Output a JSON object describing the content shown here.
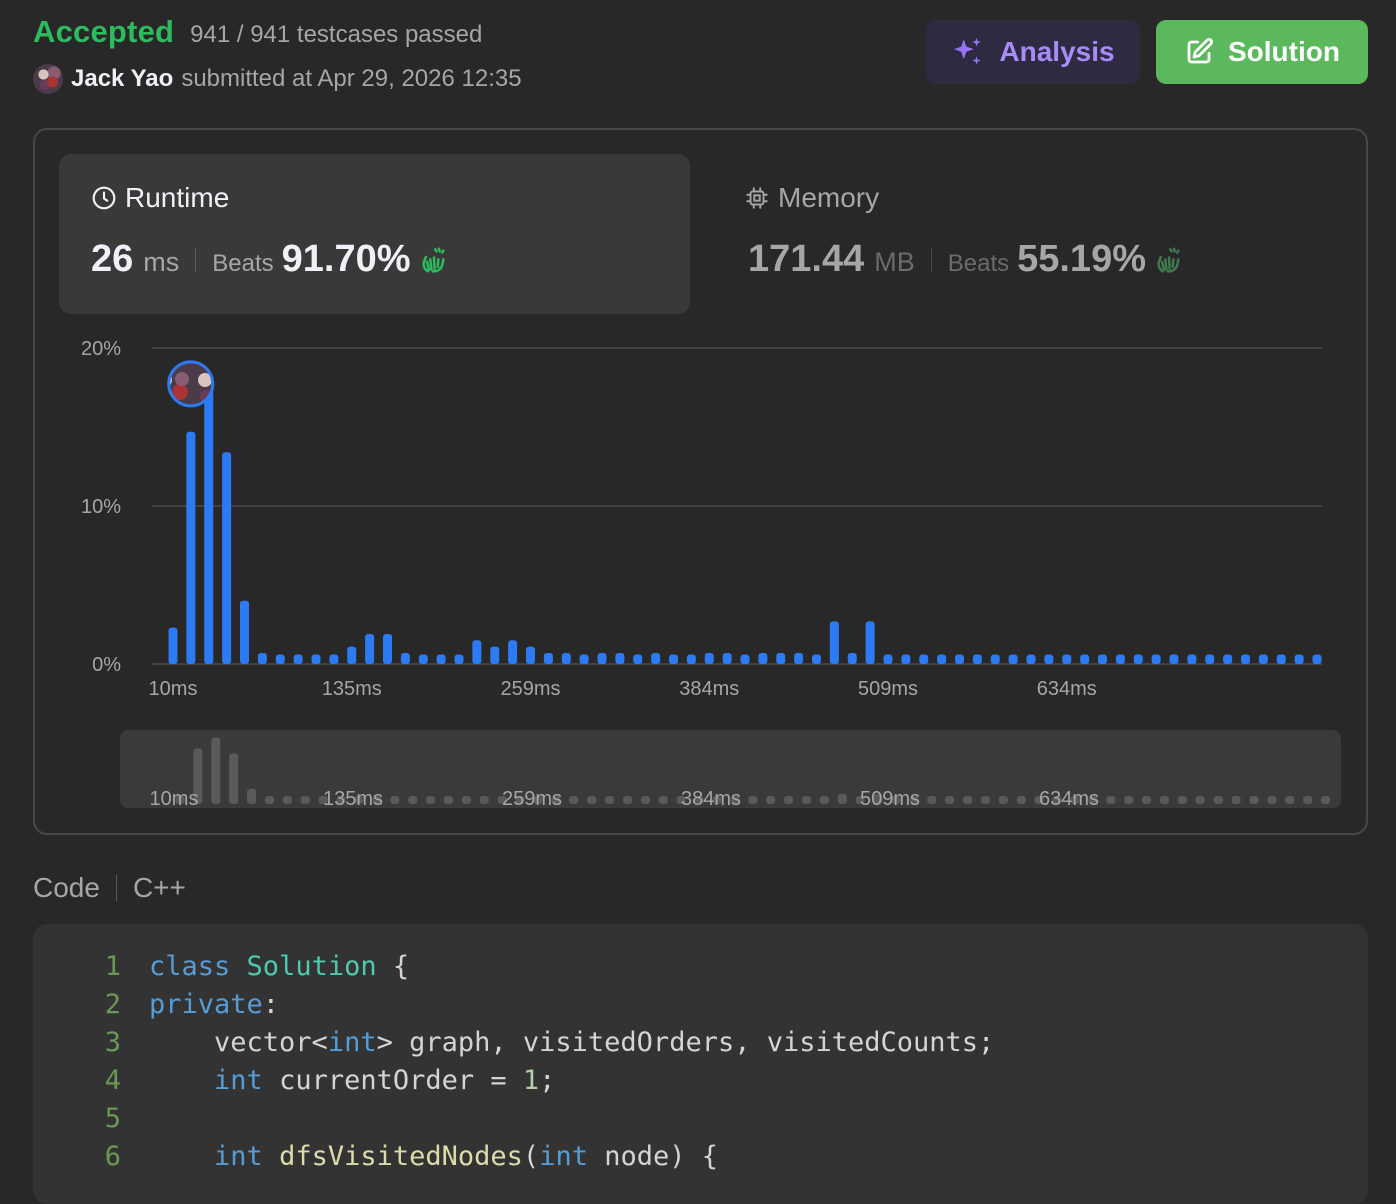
{
  "header": {
    "status": "Accepted",
    "testcases": "941 / 941 testcases passed",
    "user_name": "Jack Yao",
    "submitted_text": "submitted at Apr 29, 2026 12:35",
    "analysis_label": "Analysis",
    "solution_label": "Solution"
  },
  "runtime": {
    "title": "Runtime",
    "value": "26",
    "unit": "ms",
    "beats_label": "Beats",
    "beats": "91.70%"
  },
  "memory": {
    "title": "Memory",
    "value": "171.44",
    "unit": "MB",
    "beats_label": "Beats",
    "beats": "55.19%"
  },
  "colors": {
    "accepted": "#2cbb5d",
    "bar": "#2d7bf4",
    "analysis": "#a78bfa",
    "solution_bg": "#5cb85c"
  },
  "chart_data": {
    "type": "bar",
    "title": "",
    "xlabel": "",
    "ylabel": "",
    "ylim": [
      0,
      20
    ],
    "y_ticks": [
      "0%",
      "10%",
      "20%"
    ],
    "x_ticks": [
      "10ms",
      "135ms",
      "259ms",
      "384ms",
      "509ms",
      "634ms"
    ],
    "values": [
      2.3,
      14.7,
      17.6,
      13.4,
      4.0,
      0.7,
      0.6,
      0.6,
      0.6,
      0.6,
      1.1,
      1.9,
      1.9,
      0.7,
      0.6,
      0.6,
      0.6,
      1.5,
      1.1,
      1.5,
      1.1,
      0.7,
      0.7,
      0.6,
      0.7,
      0.7,
      0.6,
      0.7,
      0.6,
      0.6,
      0.7,
      0.7,
      0.6,
      0.7,
      0.7,
      0.7,
      0.6,
      2.7,
      0.7,
      2.7,
      0.6,
      0.6,
      0.6,
      0.6,
      0.6,
      0.6,
      0.6,
      0.6,
      0.6,
      0.6,
      0.6,
      0.6,
      0.6,
      0.6,
      0.6,
      0.6,
      0.6,
      0.6,
      0.6,
      0.6,
      0.6,
      0.6,
      0.6,
      0.6,
      0.6
    ],
    "highlight_index": 2,
    "overview_x_ticks": [
      "10ms",
      "135ms",
      "259ms",
      "384ms",
      "509ms",
      "634ms"
    ]
  },
  "code": {
    "section_label": "Code",
    "language": "C++",
    "lines": [
      {
        "n": "1",
        "tokens": [
          [
            "kw",
            "class"
          ],
          [
            "",
            " "
          ],
          [
            "ty",
            "Solution"
          ],
          [
            "",
            " {"
          ]
        ]
      },
      {
        "n": "2",
        "tokens": [
          [
            "kw",
            "private"
          ],
          [
            "",
            ":"
          ]
        ]
      },
      {
        "n": "3",
        "tokens": [
          [
            "",
            "    vector<"
          ],
          [
            "kw",
            "int"
          ],
          [
            "",
            "> graph, visitedOrders, visitedCounts;"
          ]
        ]
      },
      {
        "n": "4",
        "tokens": [
          [
            "",
            "    "
          ],
          [
            "kw",
            "int"
          ],
          [
            "",
            " currentOrder = "
          ],
          [
            "nm",
            "1"
          ],
          [
            "",
            ";"
          ]
        ]
      },
      {
        "n": "5",
        "tokens": [
          [
            "",
            ""
          ]
        ]
      },
      {
        "n": "6",
        "tokens": [
          [
            "",
            "    "
          ],
          [
            "kw",
            "int"
          ],
          [
            "",
            " "
          ],
          [
            "fn",
            "dfsVisitedNodes"
          ],
          [
            "",
            "("
          ],
          [
            "kw",
            "int"
          ],
          [
            "",
            " node) {"
          ]
        ]
      }
    ]
  }
}
